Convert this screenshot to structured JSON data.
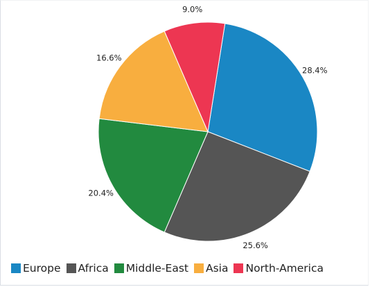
{
  "chart_data": {
    "type": "pie",
    "title": "",
    "slices": [
      {
        "label": "Europe",
        "value": 28.4,
        "display": "28.4%",
        "color": "#1a87c4"
      },
      {
        "label": "Africa",
        "value": 25.6,
        "display": "25.6%",
        "color": "#555555"
      },
      {
        "label": "Middle-East",
        "value": 20.4,
        "display": "20.4%",
        "color": "#228a3f"
      },
      {
        "label": "Asia",
        "value": 16.6,
        "display": "16.6%",
        "color": "#f8ae3f"
      },
      {
        "label": "North-America",
        "value": 9.0,
        "display": "9.0%",
        "color": "#ed3652"
      }
    ],
    "legend_position": "bottom-left",
    "start_angle_deg": 9,
    "direction": "clockwise"
  }
}
